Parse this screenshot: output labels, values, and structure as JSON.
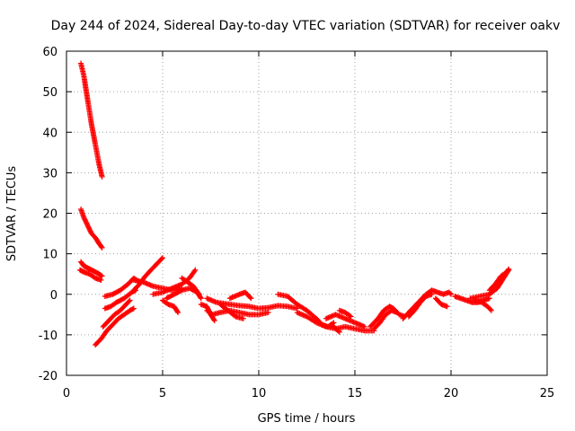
{
  "chart_data": {
    "type": "scatter",
    "title": "Day 244 of 2024, Sidereal Day-to-day VTEC variation (SDTVAR) for receiver oakv",
    "xlabel": "GPS time / hours",
    "ylabel": "SDTVAR / TECUs",
    "xlim": [
      0,
      25
    ],
    "ylim": [
      -20,
      60
    ],
    "xticks": [
      0,
      5,
      10,
      15,
      20,
      25
    ],
    "yticks": [
      -20,
      -10,
      0,
      10,
      20,
      30,
      40,
      50,
      60
    ],
    "grid": true,
    "marker": "plus",
    "color": "#ff0000",
    "series": [
      {
        "name": "SDTVAR",
        "segments": [
          [
            [
              0.75,
              57
            ],
            [
              0.9,
              54
            ],
            [
              1.1,
              48
            ],
            [
              1.3,
              42
            ],
            [
              1.5,
              37
            ],
            [
              1.7,
              32
            ],
            [
              1.85,
              29
            ]
          ],
          [
            [
              0.75,
              21
            ],
            [
              0.9,
              19
            ],
            [
              1.1,
              17
            ],
            [
              1.3,
              15
            ],
            [
              1.5,
              14
            ],
            [
              1.7,
              12.5
            ],
            [
              1.85,
              11.5
            ]
          ],
          [
            [
              0.75,
              8
            ],
            [
              0.9,
              7
            ],
            [
              1.1,
              6.5
            ],
            [
              1.3,
              6
            ],
            [
              1.5,
              5.5
            ],
            [
              1.7,
              5
            ],
            [
              1.85,
              4.5
            ]
          ],
          [
            [
              0.7,
              6
            ],
            [
              0.9,
              5.5
            ],
            [
              1.2,
              5
            ],
            [
              1.5,
              4
            ],
            [
              1.8,
              3.5
            ]
          ],
          [
            [
              1.5,
              -12.5
            ],
            [
              1.8,
              -11
            ],
            [
              2.1,
              -9
            ],
            [
              2.4,
              -7.5
            ],
            [
              2.7,
              -6
            ],
            [
              3.0,
              -5
            ],
            [
              3.3,
              -4
            ],
            [
              3.5,
              -3.5
            ]
          ],
          [
            [
              2.0,
              -3.5
            ],
            [
              2.3,
              -3
            ],
            [
              2.6,
              -2
            ],
            [
              3.0,
              -1
            ],
            [
              3.4,
              0.5
            ],
            [
              3.6,
              1
            ]
          ],
          [
            [
              1.9,
              -8
            ],
            [
              2.2,
              -6.5
            ],
            [
              2.5,
              -5
            ],
            [
              2.8,
              -4
            ],
            [
              3.1,
              -2.5
            ],
            [
              3.3,
              -1.5
            ]
          ],
          [
            [
              2.0,
              -0.5
            ],
            [
              2.4,
              0
            ],
            [
              2.8,
              1
            ],
            [
              3.2,
              2.5
            ],
            [
              3.5,
              4
            ],
            [
              3.8,
              3
            ]
          ],
          [
            [
              3.5,
              1
            ],
            [
              3.8,
              2.5
            ],
            [
              4.1,
              4.5
            ],
            [
              4.4,
              6
            ],
            [
              4.7,
              7.5
            ],
            [
              4.9,
              8.5
            ],
            [
              5.0,
              9
            ]
          ],
          [
            [
              3.5,
              3.5
            ],
            [
              4.0,
              3
            ],
            [
              4.5,
              2
            ],
            [
              5.0,
              1.5
            ],
            [
              5.5,
              1
            ],
            [
              6.0,
              1.5
            ]
          ],
          [
            [
              4.5,
              0
            ],
            [
              5.0,
              0.5
            ],
            [
              5.5,
              1.5
            ],
            [
              6.0,
              2.5
            ],
            [
              6.4,
              4
            ],
            [
              6.7,
              6
            ]
          ],
          [
            [
              5.2,
              -1
            ],
            [
              5.6,
              0
            ],
            [
              6.0,
              1
            ],
            [
              6.4,
              1.5
            ],
            [
              6.8,
              0.5
            ],
            [
              7.0,
              -1
            ]
          ],
          [
            [
              5.0,
              -1.5
            ],
            [
              5.3,
              -2.5
            ],
            [
              5.6,
              -3
            ],
            [
              5.8,
              -4.5
            ]
          ],
          [
            [
              6.0,
              4
            ],
            [
              6.3,
              3
            ],
            [
              6.6,
              2
            ],
            [
              6.9,
              0
            ]
          ],
          [
            [
              7.3,
              -1
            ],
            [
              7.8,
              -2
            ],
            [
              8.5,
              -2.5
            ],
            [
              9.0,
              -2.8
            ],
            [
              9.5,
              -3
            ],
            [
              10.0,
              -3.5
            ],
            [
              10.5,
              -3.3
            ],
            [
              11.0,
              -2.8
            ],
            [
              11.5,
              -3
            ],
            [
              12.0,
              -3.5
            ]
          ],
          [
            [
              7.3,
              -4
            ],
            [
              7.6,
              -5
            ],
            [
              8.0,
              -4.5
            ],
            [
              8.5,
              -4
            ],
            [
              9.0,
              -4.5
            ],
            [
              9.5,
              -5
            ],
            [
              10.0,
              -5
            ],
            [
              10.5,
              -4.5
            ]
          ],
          [
            [
              7.0,
              -2.5
            ],
            [
              7.3,
              -3
            ],
            [
              7.5,
              -5
            ],
            [
              7.7,
              -6.5
            ]
          ],
          [
            [
              8.0,
              -2.5
            ],
            [
              8.4,
              -4
            ],
            [
              8.8,
              -5.5
            ],
            [
              9.2,
              -6
            ]
          ],
          [
            [
              8.5,
              -1
            ],
            [
              9.0,
              0
            ],
            [
              9.3,
              0.5
            ],
            [
              9.6,
              -1
            ]
          ],
          [
            [
              11.0,
              0
            ],
            [
              11.5,
              -0.5
            ],
            [
              12.0,
              -2.5
            ],
            [
              12.5,
              -4
            ],
            [
              13.0,
              -6
            ],
            [
              13.3,
              -7.5
            ],
            [
              13.6,
              -8
            ],
            [
              13.9,
              -7
            ]
          ],
          [
            [
              12.0,
              -4.5
            ],
            [
              12.5,
              -5.5
            ],
            [
              13.0,
              -7
            ],
            [
              13.5,
              -8
            ],
            [
              14.0,
              -8.5
            ],
            [
              14.5,
              -8
            ],
            [
              15.0,
              -8.5
            ],
            [
              15.5,
              -9
            ],
            [
              16.0,
              -9
            ]
          ],
          [
            [
              13.5,
              -6
            ],
            [
              14.0,
              -5
            ],
            [
              14.5,
              -6
            ],
            [
              15.0,
              -7
            ],
            [
              15.5,
              -8
            ]
          ],
          [
            [
              14.2,
              -4
            ],
            [
              14.5,
              -4.5
            ],
            [
              14.8,
              -5.5
            ]
          ],
          [
            [
              13.8,
              -7.5
            ],
            [
              14.0,
              -8.5
            ],
            [
              14.2,
              -9.3
            ]
          ],
          [
            [
              16.0,
              -8.5
            ],
            [
              16.3,
              -7
            ],
            [
              16.6,
              -5
            ],
            [
              16.9,
              -4
            ],
            [
              17.2,
              -4.5
            ]
          ],
          [
            [
              15.8,
              -8
            ],
            [
              16.2,
              -6
            ],
            [
              16.5,
              -4
            ],
            [
              16.8,
              -3
            ],
            [
              17.0,
              -3.5
            ],
            [
              17.3,
              -5
            ],
            [
              17.6,
              -5.5
            ]
          ],
          [
            [
              17.5,
              -6
            ],
            [
              17.8,
              -4.5
            ],
            [
              18.1,
              -3
            ],
            [
              18.4,
              -1.5
            ],
            [
              18.7,
              0
            ],
            [
              19.0,
              1
            ],
            [
              19.3,
              0.5
            ],
            [
              19.6,
              0
            ],
            [
              19.9,
              0.5
            ],
            [
              20.0,
              0
            ]
          ],
          [
            [
              17.8,
              -5.5
            ],
            [
              18.1,
              -4
            ],
            [
              18.4,
              -2
            ],
            [
              18.7,
              -0.5
            ],
            [
              19.0,
              0
            ]
          ],
          [
            [
              19.2,
              -1
            ],
            [
              19.5,
              -2.5
            ],
            [
              19.8,
              -3
            ]
          ],
          [
            [
              20.2,
              -0.5
            ],
            [
              20.5,
              -1
            ],
            [
              20.8,
              -1.5
            ],
            [
              21.1,
              -2
            ],
            [
              21.4,
              -2
            ],
            [
              21.7,
              -1.5
            ],
            [
              22.0,
              -1
            ]
          ],
          [
            [
              21.0,
              -1
            ],
            [
              21.5,
              -0.5
            ],
            [
              22.0,
              0
            ],
            [
              22.4,
              1.5
            ],
            [
              22.6,
              3
            ],
            [
              22.8,
              4.5
            ],
            [
              23.0,
              6
            ]
          ],
          [
            [
              21.2,
              -1.5
            ],
            [
              21.6,
              -2
            ],
            [
              21.9,
              -3
            ],
            [
              22.1,
              -4
            ]
          ],
          [
            [
              22.0,
              1
            ],
            [
              22.3,
              2.5
            ],
            [
              22.6,
              4.5
            ],
            [
              22.9,
              5.5
            ],
            [
              23.0,
              6.2
            ]
          ]
        ]
      }
    ]
  }
}
